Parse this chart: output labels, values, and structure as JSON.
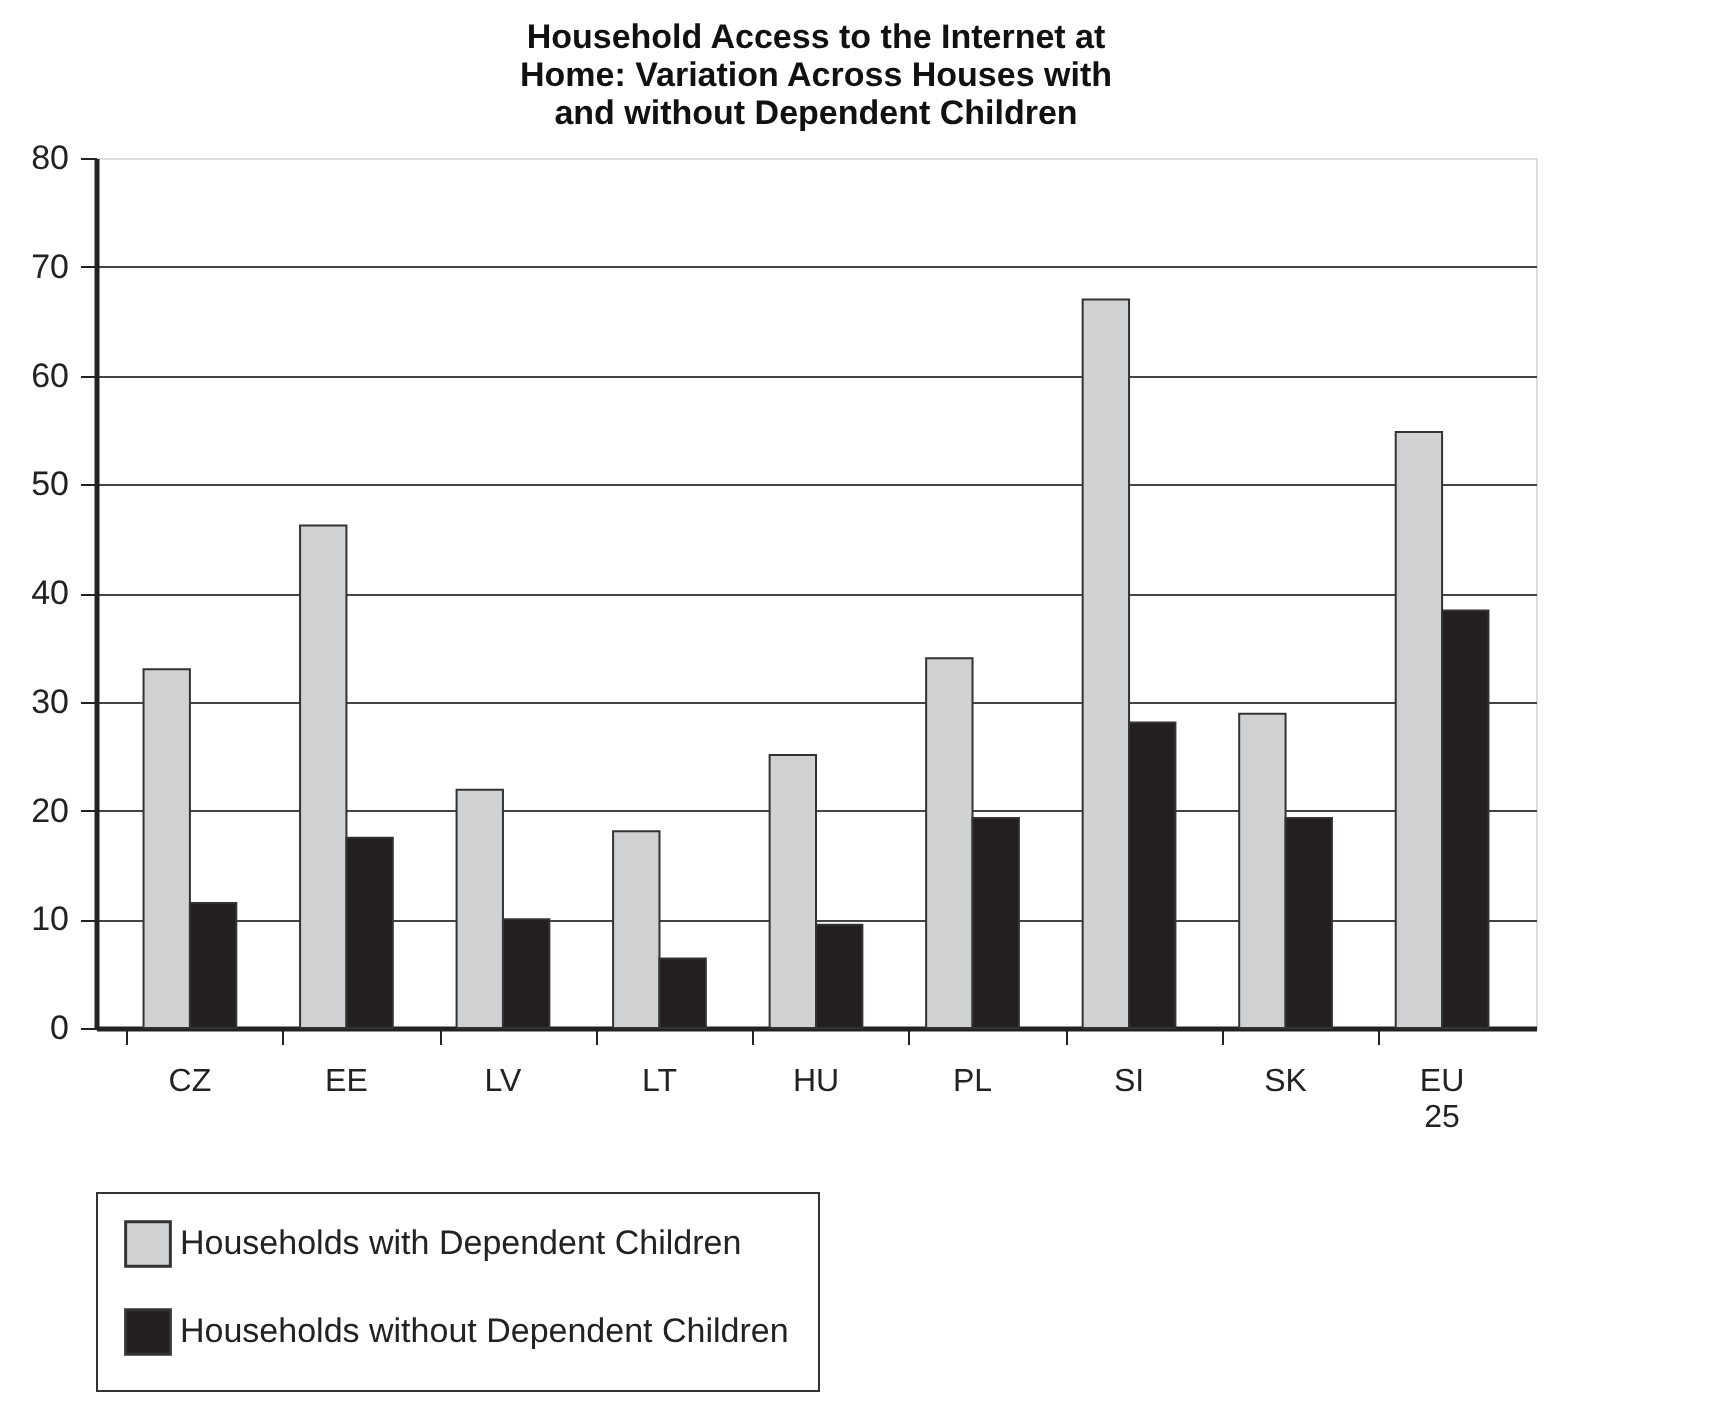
{
  "chart_data": {
    "type": "bar",
    "title": "Household Access to the Internet at Home: Variation Across Houses with and without Dependent Children",
    "categories": [
      "CZ",
      "EE",
      "LV",
      "LT",
      "HU",
      "PL",
      "SI",
      "SK",
      "EU 25"
    ],
    "series": [
      {
        "name": "Households with Dependent Children",
        "color": "#d0d1d3",
        "values": [
          33.0,
          46.2,
          21.9,
          18.1,
          25.1,
          34.0,
          67.0,
          28.9,
          54.8
        ]
      },
      {
        "name": "Households without Dependent Children",
        "color": "#231f20",
        "values": [
          11.5,
          17.5,
          10.0,
          6.4,
          9.5,
          19.3,
          28.1,
          19.3,
          38.4
        ]
      }
    ],
    "ylim": [
      0,
      80
    ],
    "yticks": [
      0,
      10,
      20,
      30,
      40,
      50,
      60,
      70,
      80
    ],
    "grid": "y",
    "legend": "bottom"
  }
}
